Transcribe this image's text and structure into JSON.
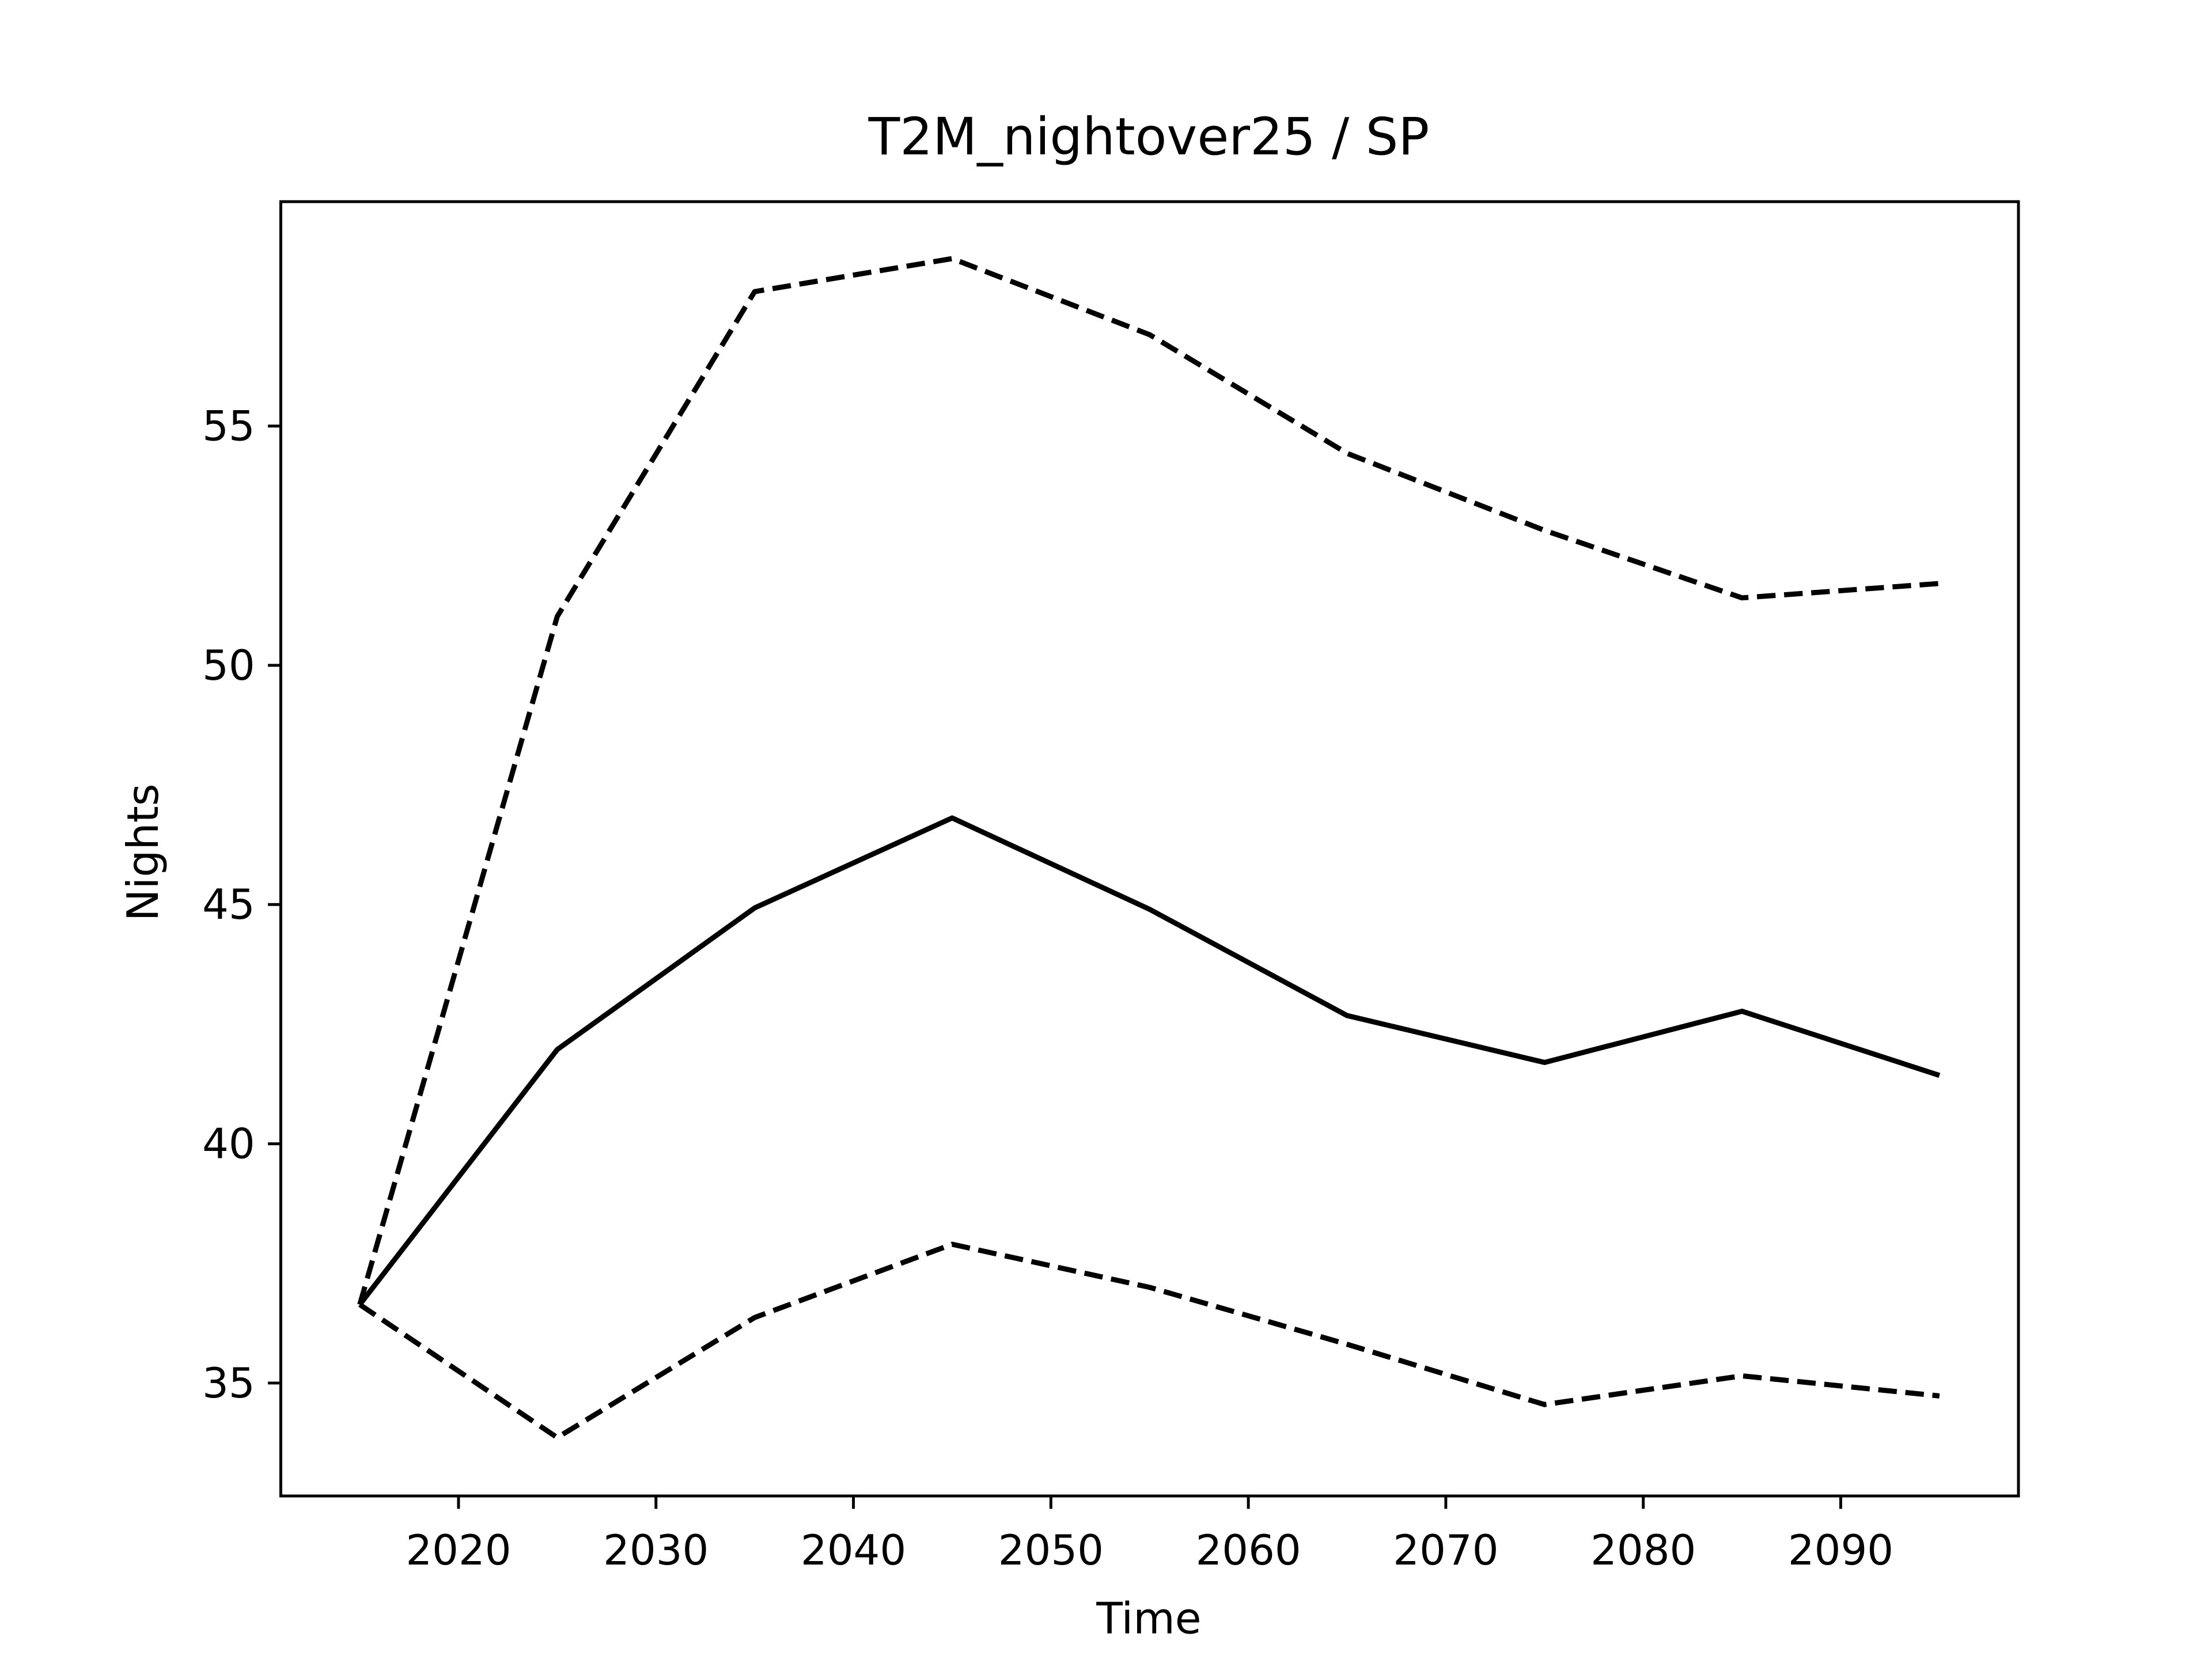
{
  "chart_data": {
    "type": "line",
    "title": "T2M_nightover25 / SP",
    "xlabel": "Time",
    "ylabel": "Nights",
    "x": [
      2015,
      2025,
      2035,
      2045,
      2055,
      2065,
      2075,
      2085,
      2095
    ],
    "series": [
      {
        "color": "#000000",
        "linestyle": "solid",
        "values": [
          36.64,
          41.97,
          44.93,
          46.81,
          44.9,
          42.68,
          41.7,
          42.77,
          41.43
        ]
      },
      {
        "color": "#000000",
        "linestyle": "dashed",
        "values": [
          36.64,
          51.02,
          57.81,
          58.5,
          56.91,
          54.43,
          52.82,
          51.41,
          51.71
        ]
      },
      {
        "color": "#000000",
        "linestyle": "dashed",
        "values": [
          36.64,
          33.86,
          36.37,
          37.9,
          37.0,
          35.81,
          34.55,
          35.15,
          34.73
        ]
      }
    ],
    "xlim": [
      2011,
      2099
    ],
    "ylim": [
      32.64,
      59.69
    ],
    "xticks": [
      2020,
      2030,
      2040,
      2050,
      2060,
      2070,
      2080,
      2090
    ],
    "yticks": [
      35,
      40,
      45,
      50,
      55
    ],
    "grid": false
  }
}
